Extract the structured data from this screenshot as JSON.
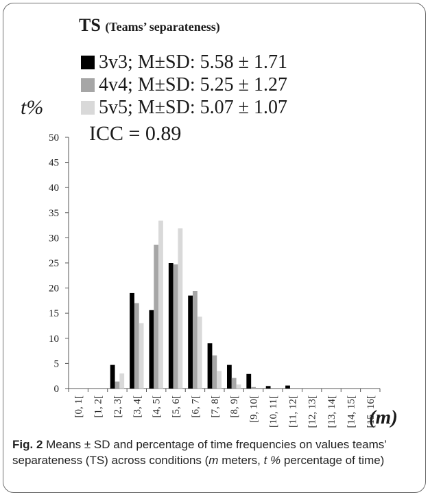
{
  "chart_data": {
    "type": "bar",
    "title": "TS",
    "subtitle": "(Teams’ separateness)",
    "ylabel": "t%",
    "xlabel": "(m)",
    "annotation": "ICC = 0.89",
    "ylim": [
      0,
      50
    ],
    "yticks": [
      0,
      5,
      10,
      15,
      20,
      25,
      30,
      35,
      40,
      45,
      50
    ],
    "grid": false,
    "legend_position": "top-left",
    "categories": [
      "[0, 1[",
      "[1, 2[",
      "[2, 3[",
      "[3, 4[",
      "[4, 5[",
      "[5, 6[",
      "[6, 7[",
      "[7, 8[",
      "[8, 9[",
      "[9, 10[",
      "[10, 11[",
      "[11, 12[",
      "[12, 13[",
      "[13, 14[",
      "[14, 15[",
      "[15, 16["
    ],
    "series": [
      {
        "name": "3v3; M±SD: 5.58 ± 1.71",
        "color": "#000000",
        "values": [
          0,
          0,
          4.7,
          19.0,
          15.6,
          25.0,
          18.5,
          9.0,
          4.7,
          2.9,
          0.5,
          0.6,
          0,
          0,
          0,
          0
        ]
      },
      {
        "name": "4v4; M±SD: 5.25 ± 1.27",
        "color": "#a6a6a6",
        "values": [
          0,
          0,
          1.4,
          17.0,
          28.6,
          24.7,
          19.4,
          6.6,
          2.1,
          0.3,
          0,
          0,
          0,
          0,
          0,
          0
        ]
      },
      {
        "name": "5v5; M±SD: 5.07 ± 1.07",
        "color": "#d9d9d9",
        "values": [
          0,
          0,
          3.0,
          13.0,
          33.4,
          31.9,
          14.3,
          3.5,
          0.8,
          0,
          0,
          0,
          0,
          0,
          0,
          0
        ]
      }
    ]
  },
  "caption": {
    "label": "Fig. 2",
    "text_1": "  Means ± SD and percentage of time frequencies on values teams’ separateness (TS) across conditions (",
    "m": "m",
    "text_2": " meters, ",
    "t": "t %",
    "text_3": " percentage of time)"
  }
}
